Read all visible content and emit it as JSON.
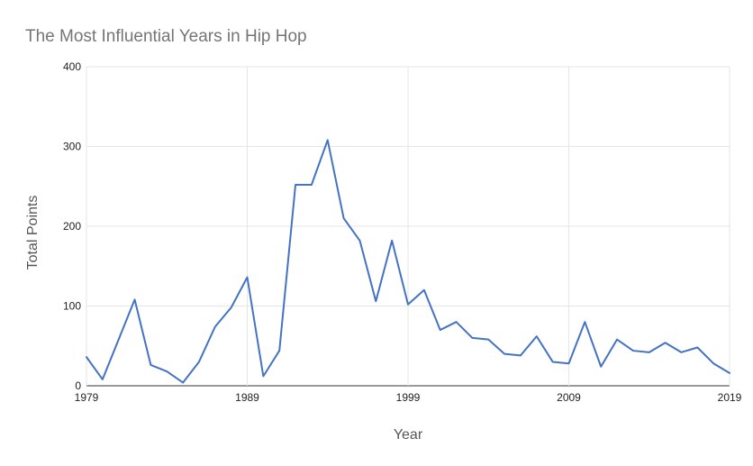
{
  "chart_data": {
    "type": "line",
    "title": "The Most Influential Years in Hip Hop",
    "xlabel": "Year",
    "ylabel": "Total Points",
    "xlim": [
      1979,
      2019
    ],
    "ylim": [
      0,
      400
    ],
    "x_ticks": [
      "1979",
      "1989",
      "1999",
      "2009",
      "2019"
    ],
    "y_ticks": [
      "0",
      "100",
      "200",
      "300",
      "400"
    ],
    "grid": true,
    "legend": "none",
    "series_color": "#4472c4",
    "x": [
      1979,
      1980,
      1981,
      1982,
      1983,
      1984,
      1985,
      1986,
      1987,
      1988,
      1989,
      1990,
      1991,
      1992,
      1993,
      1994,
      1995,
      1996,
      1997,
      1998,
      1999,
      2000,
      2001,
      2002,
      2003,
      2004,
      2005,
      2006,
      2007,
      2008,
      2009,
      2010,
      2011,
      2012,
      2013,
      2014,
      2015,
      2016,
      2017,
      2018,
      2019
    ],
    "series": [
      {
        "values": [
          36,
          8,
          58,
          108,
          26,
          18,
          4,
          30,
          74,
          98,
          136,
          12,
          44,
          252,
          252,
          308,
          210,
          182,
          106,
          182,
          102,
          120,
          70,
          80,
          60,
          58,
          40,
          38,
          62,
          30,
          28,
          80,
          24,
          58,
          44,
          42,
          54,
          42,
          48,
          28,
          16
        ]
      }
    ]
  }
}
